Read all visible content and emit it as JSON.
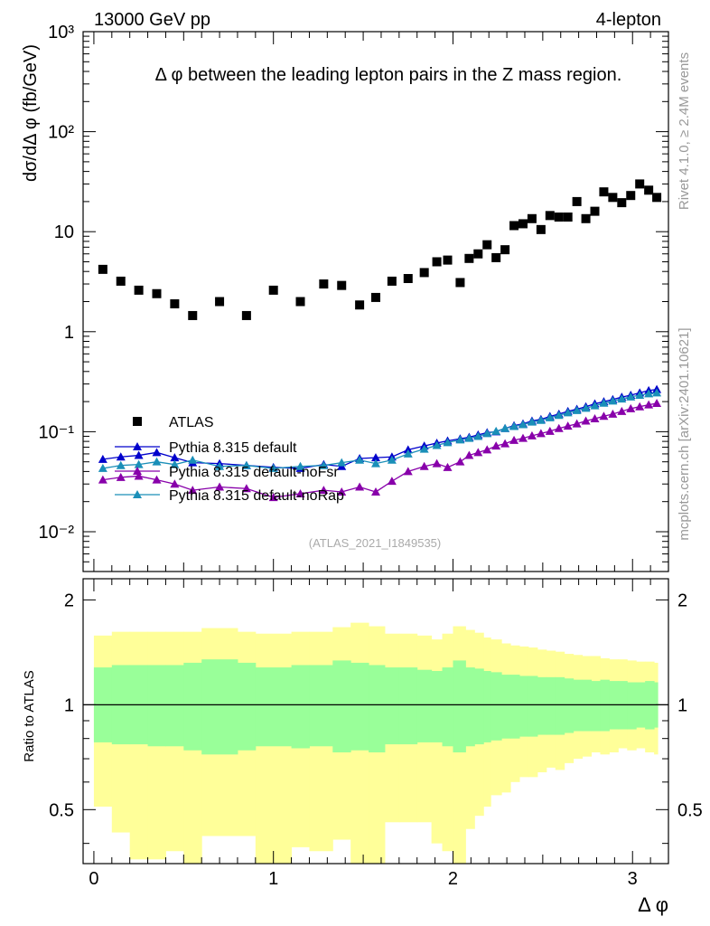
{
  "header": {
    "energy_label": "13000 GeV pp",
    "process_label": "4-lepton",
    "plot_title": "Δ φ between the leading lepton pairs in the Z mass region.",
    "analysis_id": "(ATLAS_2021_I1849535)",
    "side_rivet": "Rivet 4.1.0, ≥ 2.4M events",
    "side_mcplots": "mcplots.cern.ch [arXiv:2401.10621]"
  },
  "chart_data": [
    {
      "type": "scatter",
      "title": "Δ φ between the leading lepton pairs in the Z mass region.",
      "xlabel": "Δ φ",
      "ylabel": "dσ/dΔ φ (fb/GeV)",
      "yscale": "log",
      "xlim": [
        -0.06,
        3.2
      ],
      "ylim": [
        0.004,
        1000
      ],
      "ytick_labels": [
        "10⁻²",
        "10⁻¹",
        "1",
        "10",
        "10²",
        "10³"
      ],
      "ytick_values": [
        0.01,
        0.1,
        1,
        10,
        100,
        1000
      ],
      "x": [
        0.05,
        0.15,
        0.25,
        0.35,
        0.45,
        0.55,
        0.7,
        0.85,
        1.0,
        1.15,
        1.28,
        1.38,
        1.48,
        1.57,
        1.66,
        1.75,
        1.84,
        1.91,
        1.97,
        2.04,
        2.09,
        2.14,
        2.19,
        2.24,
        2.29,
        2.34,
        2.39,
        2.44,
        2.49,
        2.54,
        2.59,
        2.64,
        2.69,
        2.74,
        2.79,
        2.84,
        2.89,
        2.94,
        2.99,
        3.04,
        3.09,
        3.135
      ],
      "legend_position": "lower-left",
      "series": [
        {
          "name": "ATLAS",
          "color": "#000000",
          "marker": "square",
          "values": [
            4.2,
            3.2,
            2.6,
            2.4,
            1.9,
            1.45,
            2.0,
            1.45,
            2.6,
            2.0,
            3.0,
            2.9,
            1.85,
            2.2,
            3.2,
            3.4,
            3.9,
            5.0,
            5.2,
            3.1,
            5.4,
            6.0,
            7.4,
            5.5,
            6.6,
            11.5,
            12.0,
            13.5,
            10.5,
            14.5,
            14.0,
            14.0,
            20.0,
            13.5,
            16.0,
            25.0,
            22.0,
            19.5,
            23.0,
            30.0,
            26.0,
            22.0
          ]
        },
        {
          "name": "Pythia 8.315 default",
          "color": "#0000cc",
          "marker": "triangle",
          "values": [
            0.053,
            0.056,
            0.058,
            0.062,
            0.055,
            0.049,
            0.048,
            0.046,
            0.044,
            0.043,
            0.047,
            0.045,
            0.054,
            0.055,
            0.056,
            0.066,
            0.072,
            0.077,
            0.081,
            0.085,
            0.088,
            0.093,
            0.098,
            0.1,
            0.108,
            0.115,
            0.12,
            0.128,
            0.133,
            0.142,
            0.15,
            0.16,
            0.168,
            0.178,
            0.19,
            0.2,
            0.21,
            0.222,
            0.232,
            0.245,
            0.258,
            0.265
          ]
        },
        {
          "name": "Pythia 8.315 default-noFsr",
          "color": "#8800aa",
          "marker": "triangle",
          "values": [
            0.033,
            0.035,
            0.036,
            0.033,
            0.03,
            0.026,
            0.028,
            0.027,
            0.022,
            0.024,
            0.026,
            0.025,
            0.028,
            0.025,
            0.032,
            0.04,
            0.045,
            0.048,
            0.044,
            0.05,
            0.058,
            0.062,
            0.066,
            0.072,
            0.076,
            0.082,
            0.086,
            0.091,
            0.096,
            0.101,
            0.108,
            0.114,
            0.12,
            0.128,
            0.135,
            0.143,
            0.15,
            0.16,
            0.17,
            0.178,
            0.186,
            0.192
          ]
        },
        {
          "name": "Pythia 8.315 default-noRap",
          "color": "#1a8fb8",
          "marker": "triangle",
          "values": [
            0.043,
            0.046,
            0.047,
            0.05,
            0.047,
            0.052,
            0.045,
            0.046,
            0.043,
            0.045,
            0.046,
            0.049,
            0.052,
            0.048,
            0.052,
            0.06,
            0.067,
            0.073,
            0.078,
            0.083,
            0.086,
            0.09,
            0.096,
            0.101,
            0.108,
            0.113,
            0.118,
            0.125,
            0.13,
            0.138,
            0.146,
            0.155,
            0.163,
            0.172,
            0.182,
            0.193,
            0.203,
            0.213,
            0.223,
            0.232,
            0.24,
            0.245
          ]
        }
      ]
    },
    {
      "type": "area",
      "ylabel": "Ratio to ATLAS",
      "xlabel": "Δ φ",
      "xlim": [
        -0.06,
        3.2
      ],
      "ylim": [
        0.35,
        2.3
      ],
      "yticks": [
        0.5,
        1,
        2
      ],
      "ytick_labels": [
        "0.5",
        "1",
        "2"
      ],
      "xticks": [
        0,
        1,
        2,
        3
      ],
      "xtick_labels": [
        "0",
        "1",
        "2",
        "3"
      ],
      "reference_line": 1,
      "bin_edges": [
        0.0,
        0.1,
        0.2,
        0.3,
        0.4,
        0.5,
        0.6,
        0.8,
        0.9,
        1.1,
        1.2,
        1.33,
        1.43,
        1.53,
        1.62,
        1.7,
        1.8,
        1.88,
        1.94,
        2.0,
        2.07,
        2.12,
        2.17,
        2.21,
        2.27,
        2.32,
        2.37,
        2.42,
        2.47,
        2.52,
        2.57,
        2.62,
        2.67,
        2.72,
        2.77,
        2.82,
        2.87,
        2.92,
        2.97,
        3.02,
        3.07,
        3.12,
        3.14
      ],
      "stat_band": {
        "name": "stat uncertainty",
        "color": "#99ff99",
        "upper": [
          1.28,
          1.3,
          1.3,
          1.3,
          1.3,
          1.32,
          1.35,
          1.32,
          1.28,
          1.3,
          1.3,
          1.34,
          1.32,
          1.3,
          1.28,
          1.28,
          1.26,
          1.25,
          1.28,
          1.34,
          1.28,
          1.27,
          1.25,
          1.24,
          1.22,
          1.22,
          1.21,
          1.21,
          1.2,
          1.2,
          1.2,
          1.19,
          1.18,
          1.18,
          1.17,
          1.18,
          1.17,
          1.17,
          1.16,
          1.16,
          1.17,
          1.16
        ],
        "lower": [
          0.78,
          0.77,
          0.77,
          0.76,
          0.76,
          0.74,
          0.72,
          0.74,
          0.76,
          0.75,
          0.76,
          0.73,
          0.74,
          0.73,
          0.77,
          0.77,
          0.78,
          0.78,
          0.76,
          0.73,
          0.76,
          0.77,
          0.78,
          0.79,
          0.8,
          0.8,
          0.81,
          0.81,
          0.82,
          0.82,
          0.82,
          0.83,
          0.84,
          0.84,
          0.84,
          0.84,
          0.85,
          0.85,
          0.85,
          0.86,
          0.85,
          0.86
        ]
      },
      "syst_band": {
        "name": "total uncertainty",
        "color": "#ffff99",
        "upper": [
          1.58,
          1.62,
          1.62,
          1.62,
          1.62,
          1.62,
          1.66,
          1.62,
          1.6,
          1.62,
          1.62,
          1.67,
          1.72,
          1.68,
          1.6,
          1.6,
          1.58,
          1.54,
          1.6,
          1.68,
          1.64,
          1.61,
          1.56,
          1.54,
          1.5,
          1.48,
          1.47,
          1.46,
          1.44,
          1.43,
          1.42,
          1.4,
          1.39,
          1.38,
          1.38,
          1.36,
          1.35,
          1.35,
          1.34,
          1.33,
          1.33,
          1.32
        ],
        "lower": [
          0.51,
          0.43,
          0.36,
          0.36,
          0.38,
          0.35,
          0.42,
          0.42,
          0.32,
          0.39,
          0.38,
          0.41,
          0.33,
          0.3,
          0.46,
          0.46,
          0.46,
          0.4,
          0.38,
          0.35,
          0.44,
          0.48,
          0.51,
          0.55,
          0.56,
          0.6,
          0.62,
          0.62,
          0.64,
          0.66,
          0.65,
          0.68,
          0.7,
          0.71,
          0.73,
          0.72,
          0.73,
          0.75,
          0.74,
          0.75,
          0.73,
          0.72
        ]
      }
    }
  ]
}
